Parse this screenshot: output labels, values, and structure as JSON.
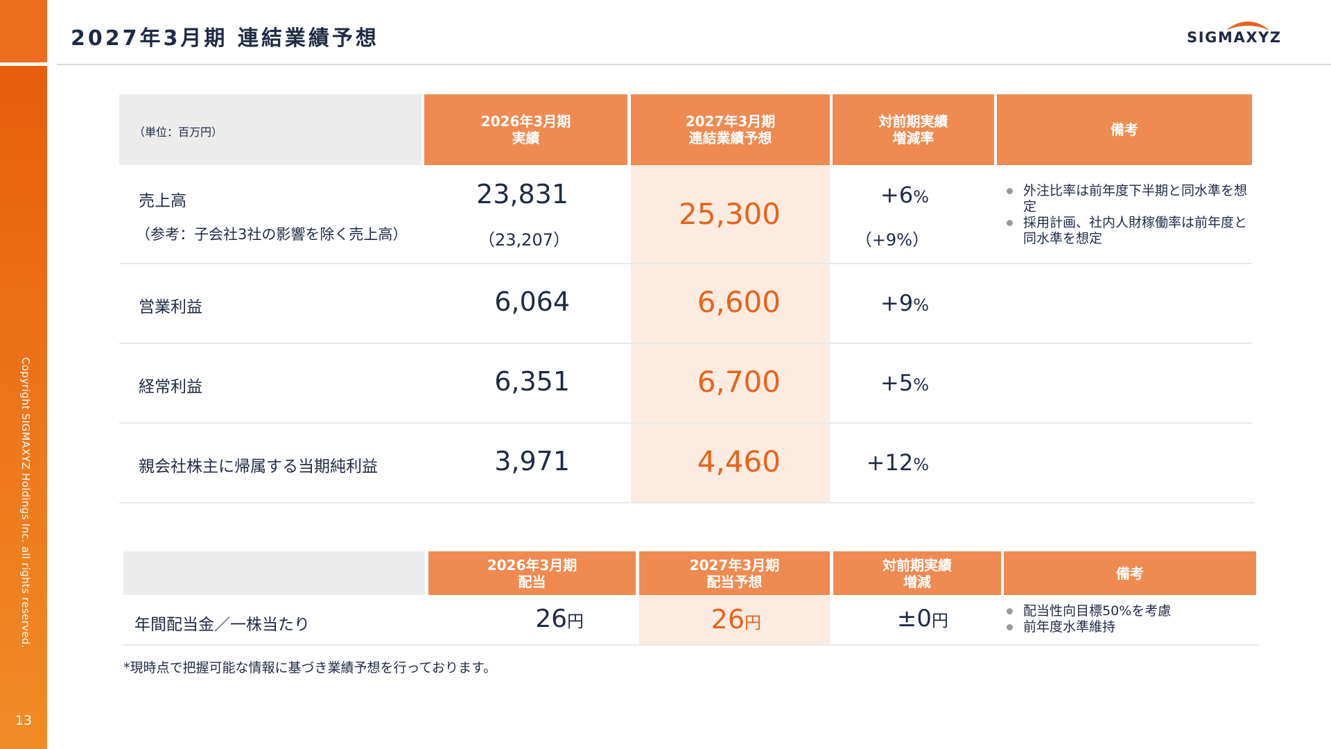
{
  "page": {
    "title": "2027年3月期 連結業績予想",
    "logo_text": "SIGMAXYZ",
    "copyright": "Copyright SIGMAXYZ Holdings Inc. all rights reserved.",
    "page_number": "13",
    "accent_color": "#ec6c1e",
    "highlight_color": "#e8621a"
  },
  "results_table": {
    "unit": "（単位：百万円）",
    "headers": [
      "2026年3月期\n実績",
      "2027年3月期\n連結業績予想",
      "対前期実績\n増減率",
      "備考"
    ],
    "rows": [
      {
        "label": "売上高",
        "sublabel": "（参考：子会社3社の影響を除く売上高）",
        "actual": "23,831",
        "actual_sub": "（23,207）",
        "forecast": "25,300",
        "change": "+6",
        "change_sub": "（+9%）"
      },
      {
        "label": "営業利益",
        "actual": "6,064",
        "forecast": "6,600",
        "change": "+9"
      },
      {
        "label": "経常利益",
        "actual": "6,351",
        "forecast": "6,700",
        "change": "+5"
      },
      {
        "label": "親会社株主に帰属する当期純利益",
        "actual": "3,971",
        "forecast": "4,460",
        "change": "+12"
      }
    ],
    "pct_sign": "%",
    "notes": [
      "外注比率は前年度下半期と同水準を想定",
      "採用計画、社内人財稼働率は前年度と同水準を想定"
    ]
  },
  "dividend_table": {
    "headers": [
      "2026年3月期\n配当",
      "2027年3月期\n配当予想",
      "対前期実績\n増減",
      "備考"
    ],
    "row": {
      "label": "年間配当金／一株当たり",
      "actual": "26",
      "forecast": "26",
      "change": "±0",
      "yen": "円"
    },
    "notes": [
      "配当性向目標50%を考慮",
      "前年度水準維持"
    ]
  },
  "footnote": "*現時点で把握可能な情報に基づき業績予想を行っております。"
}
